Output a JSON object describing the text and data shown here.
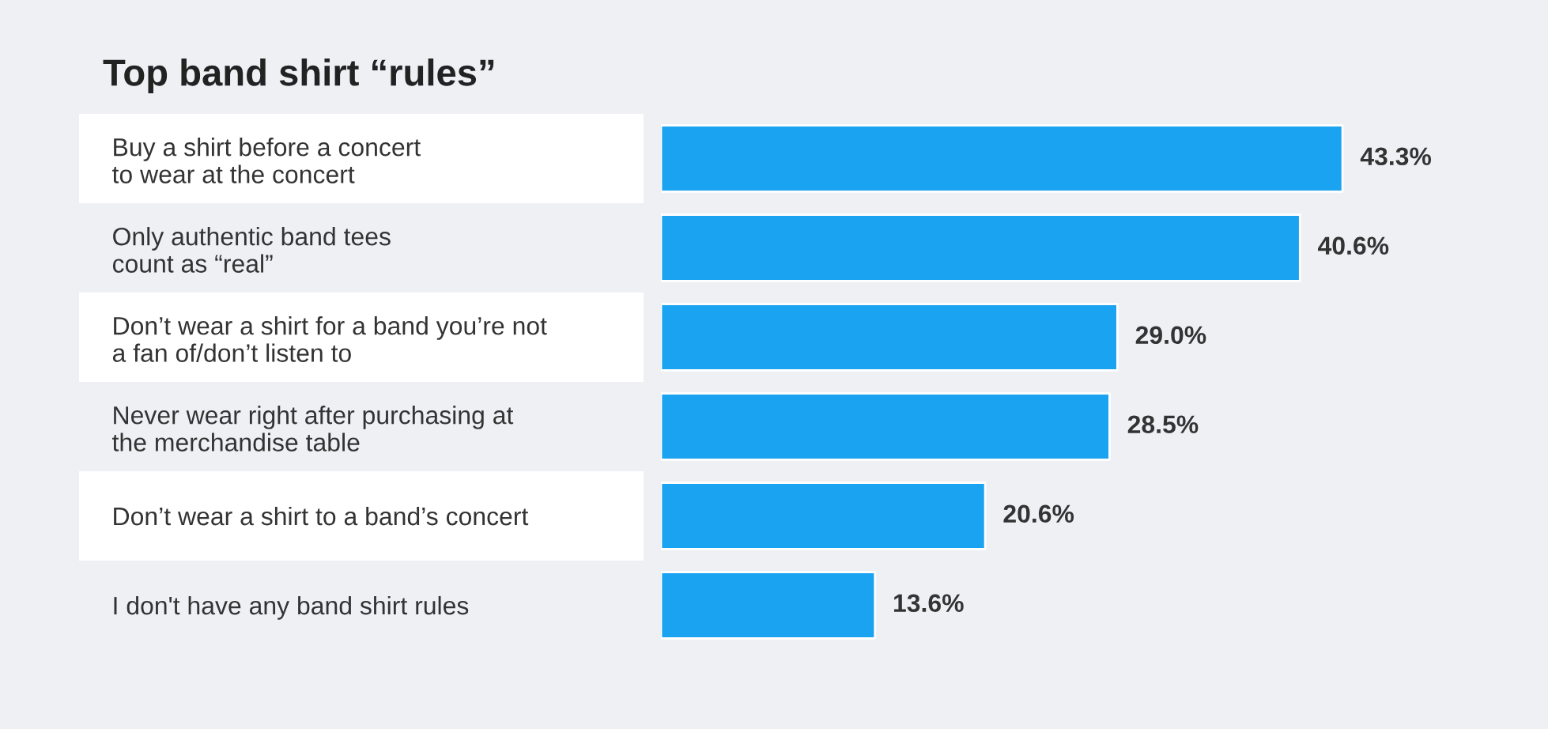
{
  "chart_data": {
    "type": "bar",
    "orientation": "horizontal",
    "title": "Top band shirt “rules”",
    "categories": [
      "Buy a shirt before a concert\nto wear at the concert",
      "Only authentic band tees\ncount as “real”",
      "Don’t wear a shirt for a band you’re not\na fan of/don’t listen to",
      "Never wear right after purchasing at\nthe merchandise table",
      "Don’t wear a shirt to a band’s concert",
      "I don't have any band shirt rules"
    ],
    "values": [
      43.3,
      40.6,
      29.0,
      28.5,
      20.6,
      13.6
    ],
    "value_labels": [
      "43.3%",
      "40.6%",
      "29.0%",
      "28.5%",
      "20.6%",
      "13.6%"
    ],
    "color": "#1aa3f0",
    "grid": false,
    "legend": false
  }
}
